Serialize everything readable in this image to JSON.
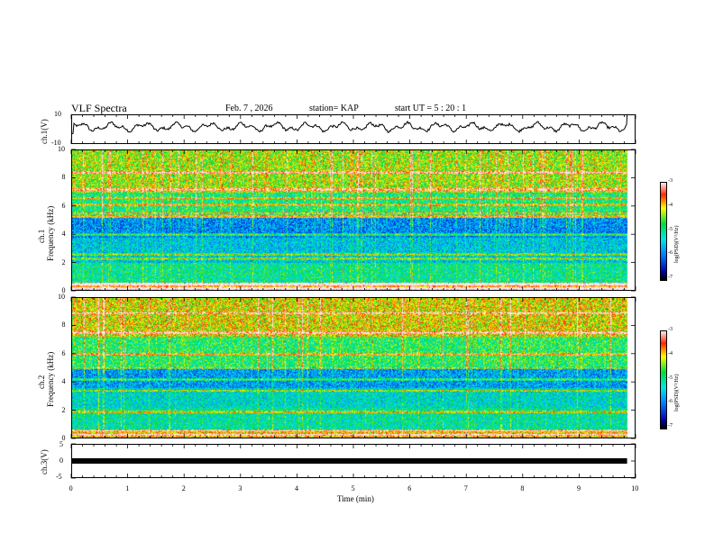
{
  "header": {
    "title": "VLF Spectra",
    "date": "Feb. 7 , 2026",
    "station": "station= KAP",
    "start": "start  UT =   5 : 20 : 1"
  },
  "chart_data": [
    {
      "type": "line",
      "name": "ch1-waveform",
      "ylabel": "ch.1(V)",
      "ylim": [
        -10,
        10
      ],
      "yticks": [
        "10",
        "-10"
      ],
      "x_range_min": [
        0,
        9.85
      ],
      "line_color": "#000000",
      "baseline_v": 1.5,
      "amplitude_v": 3.5
    },
    {
      "type": "heatmap",
      "name": "ch1-spectrogram",
      "ylabel": "ch.1\nFrequency (kHz)",
      "ylabel_line1": "ch.1",
      "ylabel_line2": "Frequency (kHz)",
      "ylim": [
        0,
        10
      ],
      "yticks": [
        "0",
        "2",
        "4",
        "6",
        "8",
        "10"
      ],
      "x_range_min": [
        0,
        9.85
      ],
      "bands_khz": [
        {
          "from": 0.0,
          "to": 0.6,
          "level": -3.6
        },
        {
          "from": 0.6,
          "to": 2.0,
          "level": -5.0
        },
        {
          "from": 2.0,
          "to": 3.8,
          "level": -5.5
        },
        {
          "from": 3.8,
          "to": 5.2,
          "level": -5.9
        },
        {
          "from": 5.2,
          "to": 7.0,
          "level": -4.9
        },
        {
          "from": 7.0,
          "to": 10.0,
          "level": -4.3
        }
      ],
      "lines_khz": [
        0.2,
        0.5,
        2.3,
        2.6,
        4.0,
        5.3,
        5.5,
        6.1,
        6.6,
        7.2,
        8.4
      ],
      "colorbar": {
        "min": -7,
        "max": -3,
        "ticks": [
          "-3",
          "-4",
          "-5",
          "-6",
          "-7"
        ],
        "label": "log(PSD)(V²/Hz)"
      }
    },
    {
      "type": "heatmap",
      "name": "ch2-spectrogram",
      "ylabel_line1": "ch.2",
      "ylabel_line2": "Frequency (kHz)",
      "ylim": [
        0,
        10
      ],
      "yticks": [
        "0",
        "2",
        "4",
        "6",
        "8",
        "10"
      ],
      "x_range_min": [
        0,
        9.85
      ],
      "bands_khz": [
        {
          "from": 0.0,
          "to": 0.6,
          "level": -3.9
        },
        {
          "from": 0.6,
          "to": 2.2,
          "level": -5.1
        },
        {
          "from": 2.2,
          "to": 3.6,
          "level": -5.3
        },
        {
          "from": 3.6,
          "to": 5.0,
          "level": -5.8
        },
        {
          "from": 5.0,
          "to": 7.2,
          "level": -4.8
        },
        {
          "from": 7.2,
          "to": 10.0,
          "level": -4.1
        }
      ],
      "lines_khz": [
        0.3,
        0.6,
        1.9,
        3.4,
        4.2,
        5.0,
        6.0,
        7.5,
        8.9
      ],
      "colorbar": {
        "min": -7,
        "max": -3,
        "ticks": [
          "-3",
          "-4",
          "-5",
          "-6",
          "-7"
        ],
        "label": "log(PSD)(V²/Hz)"
      }
    },
    {
      "type": "line",
      "name": "ch3-signal",
      "ylabel": "ch.3(V)",
      "ylim": [
        -5,
        5
      ],
      "yticks": [
        "5",
        "0",
        "-5"
      ],
      "x_range_min": [
        0,
        9.85
      ],
      "value_v": 0,
      "line_color": "#000000"
    }
  ],
  "xaxis": {
    "label": "Time  (min)",
    "ticks": [
      "0",
      "1",
      "2",
      "3",
      "4",
      "5",
      "6",
      "7",
      "8",
      "9",
      "10"
    ],
    "range": [
      0,
      10
    ]
  }
}
